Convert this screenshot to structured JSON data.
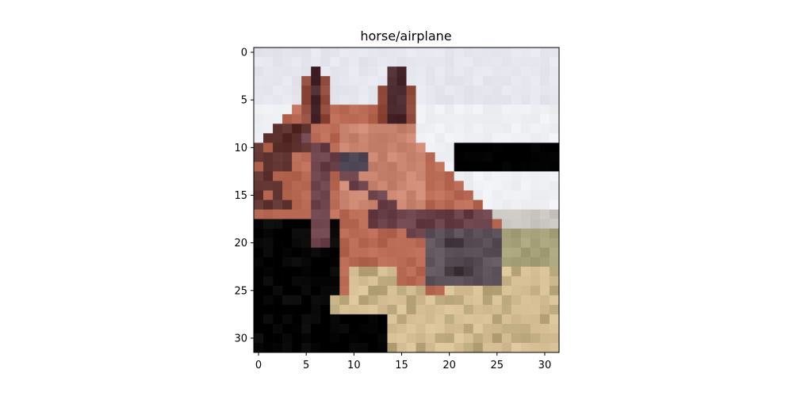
{
  "figure": {
    "title": "horse/airplane"
  },
  "image": {
    "subject": "horse-head",
    "grid_size": 32,
    "x_range": [
      -0.5,
      31.5
    ],
    "y_range": [
      -0.5,
      31.5
    ],
    "x_ticks": [
      0,
      5,
      10,
      15,
      20,
      25,
      30
    ],
    "y_ticks": [
      0,
      5,
      10,
      15,
      20,
      25,
      30
    ],
    "x_tick_labels": [
      "0",
      "5",
      "10",
      "15",
      "20",
      "25",
      "30"
    ],
    "y_tick_labels": [
      "0",
      "5",
      "10",
      "15",
      "20",
      "25",
      "30"
    ],
    "colors": {
      "sky": "#e6e7ee",
      "sky_light": "#eef0f3",
      "mane_dark": "#5a2e2a",
      "coat": "#b86a55",
      "coat_light": "#c98570",
      "coat_dark": "#8f4a3c",
      "halter": "#6a4048",
      "ear_inner": "#4a2a2e",
      "eye": "#4a4250",
      "muzzle": "#5b5058",
      "nostril": "#3a3036",
      "grass": "#d6bf95",
      "grass_dark": "#b8a57a",
      "grass_green": "#a8a27a",
      "horizon": "#c9c6c2"
    }
  }
}
